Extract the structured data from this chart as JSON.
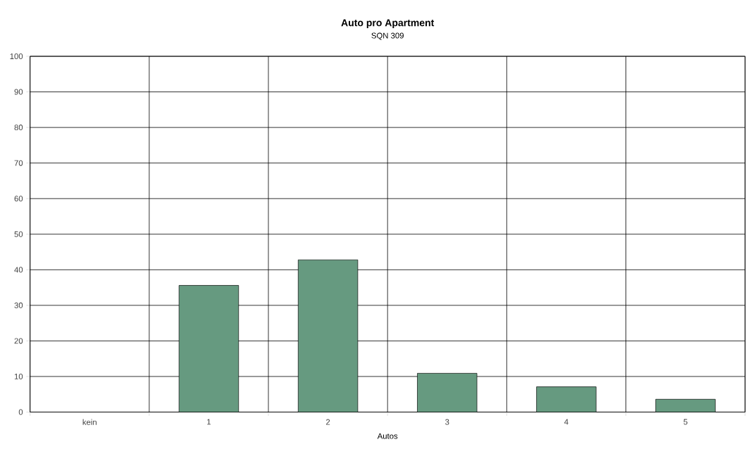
{
  "chart_data": {
    "type": "bar",
    "title": "Auto pro Apartment",
    "subtitle": "SQN 309",
    "xlabel": "Autos",
    "categories": [
      "kein",
      "1",
      "2",
      "3",
      "4",
      "5"
    ],
    "values": [
      0,
      35.6,
      42.8,
      10.9,
      7.1,
      3.6
    ],
    "color": "#669a80",
    "ylim": [
      0,
      100
    ],
    "yticks": [
      0,
      10,
      20,
      30,
      40,
      50,
      60,
      70,
      80,
      90,
      100
    ],
    "grid": true
  }
}
